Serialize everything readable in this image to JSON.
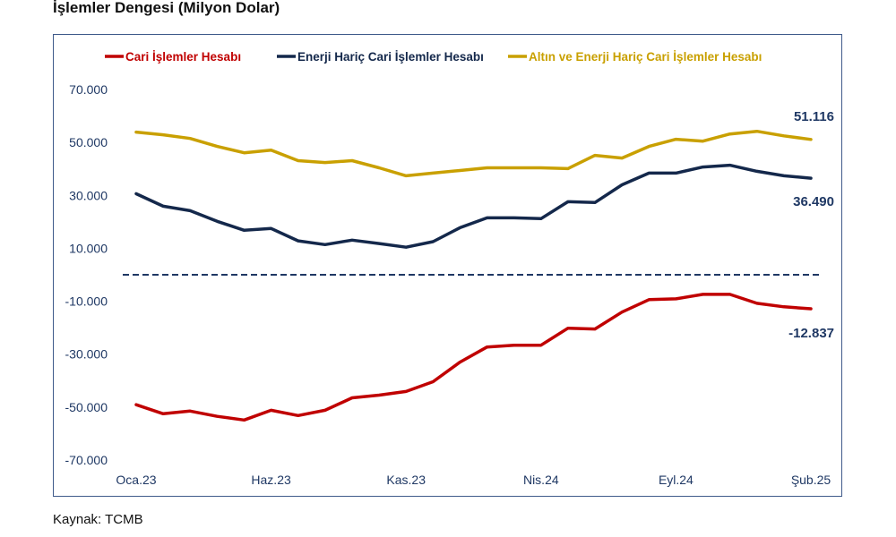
{
  "page": {
    "title": "İşlemler Dengesi (Milyon Dolar)",
    "source": "Kaynak: TCMB"
  },
  "chart_data": {
    "type": "line",
    "title": "İşlemler Dengesi (Milyon Dolar)",
    "xlabel": "",
    "ylabel": "",
    "ylim": [
      -70000,
      70000
    ],
    "yticks": [
      70000,
      50000,
      30000,
      10000,
      -10000,
      -30000,
      -50000,
      -70000
    ],
    "ytick_labels": [
      "70.000",
      "50.000",
      "30.000",
      "10.000",
      "-10.000",
      "-30.000",
      "-50.000",
      "-70.000"
    ],
    "x": [
      "Oca.23",
      "Şub.23",
      "Mar.23",
      "Nis.23",
      "May.23",
      "Haz.23",
      "Tem.23",
      "Ağu.23",
      "Eyl.23",
      "Eki.23",
      "Kas.23",
      "Ara.23",
      "Oca.24",
      "Şub.24",
      "Mar.24",
      "Nis.24",
      "May.24",
      "Haz.24",
      "Tem.24",
      "Ağu.24",
      "Eyl.24",
      "Eki.24",
      "Kas.24",
      "Ara.24",
      "Oca.25",
      "Şub.25"
    ],
    "xtick_labels": [
      {
        "index": 0,
        "label": "Oca.23"
      },
      {
        "index": 5,
        "label": "Haz.23"
      },
      {
        "index": 10,
        "label": "Kas.23"
      },
      {
        "index": 15,
        "label": "Nis.24"
      },
      {
        "index": 20,
        "label": "Eyl.24"
      },
      {
        "index": 25,
        "label": "Şub.25"
      }
    ],
    "grid": false,
    "zero_line": {
      "style": "dashed",
      "color": "#1f3864"
    },
    "legend": {
      "placement": "top"
    },
    "series": [
      {
        "name": "Cari İşlemler Hesabı",
        "color": "#c00000",
        "values": [
          -49100,
          -52500,
          -51500,
          -53500,
          -54900,
          -51200,
          -53200,
          -51200,
          -46500,
          -45500,
          -44100,
          -40400,
          -33000,
          -27300,
          -26600,
          -26600,
          -20200,
          -20500,
          -14100,
          -9400,
          -9100,
          -7400,
          -7400,
          -10800,
          -12100,
          -12837
        ],
        "end_label": "-12.837"
      },
      {
        "name": "Enerji Hariç Cari İşlemler Hesabı",
        "color": "#14284b",
        "values": [
          30600,
          25900,
          24200,
          20200,
          16800,
          17500,
          12800,
          11400,
          13100,
          11800,
          10400,
          12500,
          17800,
          21500,
          21500,
          21200,
          27600,
          27300,
          34000,
          38400,
          38400,
          40700,
          41400,
          39100,
          37400,
          36490
        ],
        "end_label": "36.490"
      },
      {
        "name": "Altın ve Enerji Hariç Cari İşlemler Hesabı",
        "color": "#c9a000",
        "values": [
          53900,
          52900,
          51500,
          48500,
          46100,
          47100,
          43100,
          42400,
          43100,
          40400,
          37400,
          38400,
          39400,
          40400,
          40400,
          40400,
          40100,
          45100,
          44100,
          48500,
          51200,
          50500,
          53200,
          54200,
          52500,
          51116
        ],
        "end_label": "51.116"
      }
    ]
  }
}
